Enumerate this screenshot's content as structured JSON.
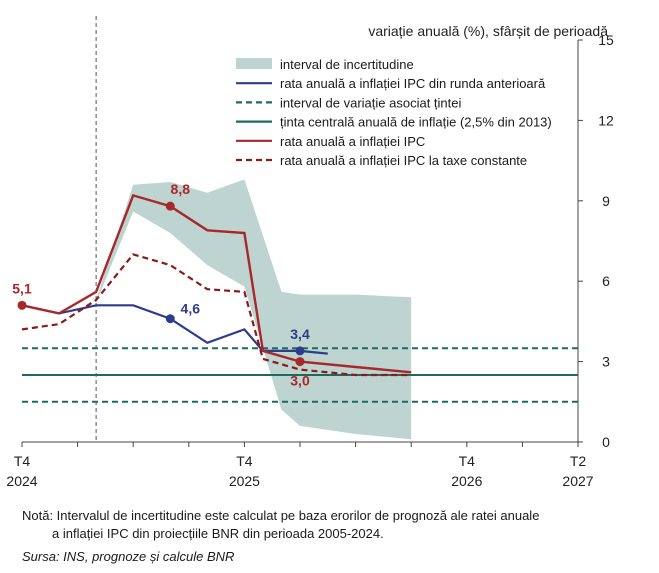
{
  "chart_data": {
    "type": "line",
    "ylabel": "variație anuală (%), sfârșit de perioadă",
    "ylim": [
      0,
      15
    ],
    "yticks": [
      "0",
      "3",
      "6",
      "9",
      "12",
      "15"
    ],
    "x_quarters": [
      "T4 2024",
      "T1 2025",
      "T2 2025",
      "T3 2025",
      "T4 2025",
      "T1 2026",
      "T2 2026",
      "T3 2026",
      "T4 2026",
      "T1 2027",
      "T2 2027"
    ],
    "x_tick_labels": [
      {
        "at": "T4 2024",
        "q": "T4",
        "y": "2024"
      },
      {
        "at": "T4 2025",
        "q": "T4",
        "y": "2025"
      },
      {
        "at": "T4 2026",
        "q": "T4",
        "y": "2026"
      },
      {
        "at": "T2 2027",
        "q": "T2",
        "y": "2027"
      }
    ],
    "legend": [
      {
        "key": "uncertainty",
        "label": "interval de incertitudine"
      },
      {
        "key": "previous",
        "label": "rata anuală a inflației IPC din runda anterioară"
      },
      {
        "key": "variation",
        "label": "interval de variație asociat țintei"
      },
      {
        "key": "target",
        "label": "ținta centrală anuală de inflație (2,5% din 2013)"
      },
      {
        "key": "cpi",
        "label": "rata anuală a inflației IPC"
      },
      {
        "key": "constant_taxes",
        "label": "rata anuală a inflației IPC la taxe constante"
      }
    ],
    "series": {
      "monthly_x": [
        0,
        0.667,
        1.333,
        2,
        2.667,
        3.333,
        4,
        4.333
      ],
      "cpi_monthly": [
        5.1,
        4.8,
        5.6,
        9.2,
        8.8,
        7.9,
        7.8,
        3.4
      ],
      "constant_taxes_monthly": [
        4.2,
        4.4,
        5.3,
        7.0,
        6.6,
        5.7,
        5.6,
        3.1
      ],
      "previous_monthly": [
        5.1,
        4.8,
        5.1,
        5.1,
        4.6,
        3.7,
        4.2,
        3.4
      ],
      "cpi_forecast_x": [
        4.333,
        5,
        6,
        7
      ],
      "cpi_forecast": [
        3.4,
        3.0,
        2.8,
        2.6
      ],
      "constant_taxes_forecast": [
        3.1,
        2.7,
        2.5,
        2.5
      ],
      "previous_forecast_x": [
        4.333,
        5,
        5.5
      ],
      "previous_forecast": [
        3.4,
        3.4,
        3.3
      ]
    },
    "uncertainty_band": {
      "x": [
        1.333,
        2,
        2.667,
        3.333,
        4,
        4.667,
        5,
        6,
        7
      ],
      "upper": [
        5.3,
        9.6,
        9.7,
        9.3,
        9.8,
        5.6,
        5.5,
        5.5,
        5.4
      ],
      "lower": [
        5.2,
        8.6,
        7.8,
        6.6,
        5.8,
        1.2,
        0.6,
        0.3,
        0.1
      ]
    },
    "variation_band": {
      "upper": 3.5,
      "lower": 1.5
    },
    "target": 2.5,
    "data_labels": [
      {
        "text": "5,1",
        "x": 0,
        "y": 5.1,
        "series": "cpi"
      },
      {
        "text": "8,8",
        "x": 2.667,
        "y": 8.8,
        "series": "cpi"
      },
      {
        "text": "4,6",
        "x": 2.667,
        "y": 4.6,
        "series": "previous"
      },
      {
        "text": "3,4",
        "x": 5,
        "y": 3.4,
        "series": "previous"
      },
      {
        "text": "3,0",
        "x": 5,
        "y": 3.0,
        "series": "cpi"
      }
    ],
    "forecast_divider_x": 1.333,
    "colors": {
      "cpi": "#a8282a",
      "constant_taxes": "#8b1a1a",
      "previous": "#2e3c8c",
      "target": "#1d6b5e",
      "variation": "#1d6b5e",
      "band": "#bdd4d0",
      "divider": "#555555",
      "axis": "#444444"
    }
  },
  "notes": {
    "line1": "Notă: Intervalul de incertitudine este calculat pe baza erorilor de prognoză ale ratei anuale",
    "line2": "a inflației IPC din proiecțiile BNR din perioada 2005-2024.",
    "source": "Sursa: INS, prognoze și calcule BNR"
  }
}
